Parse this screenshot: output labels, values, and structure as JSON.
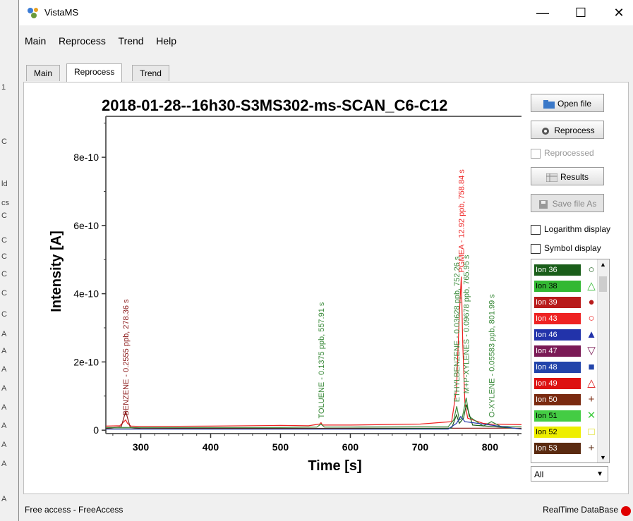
{
  "app": {
    "title": "VistaMS"
  },
  "window_controls": {
    "minimize": "—",
    "maximize": "☐",
    "close": "✕"
  },
  "menu": [
    "Main",
    "Reprocess",
    "Trend",
    "Help"
  ],
  "tabs": [
    "Main",
    "Reprocess",
    "Trend"
  ],
  "active_tab": "Reprocess",
  "left_strip_glyphs": [
    "1",
    "C",
    "ld",
    "cs",
    "C",
    "C",
    "C",
    "C",
    "C",
    "C",
    "A",
    "A",
    "A",
    "A",
    "A",
    "A",
    "A",
    "A",
    "A"
  ],
  "buttons": {
    "open_file": "Open file",
    "reprocess": "Reprocess",
    "results": "Results",
    "save_file_as": "Save file As"
  },
  "checkboxes": {
    "reprocessed": {
      "label": "Reprocessed",
      "checked": false,
      "enabled": false
    },
    "logarithm": {
      "label": "Logarithm display",
      "checked": false
    },
    "symbol": {
      "label": "Symbol display",
      "checked": false
    }
  },
  "ions": [
    {
      "label": "Ion 36",
      "color": "#1a5e1a",
      "text_color": "#ffffff",
      "symbol": "○",
      "symbol_color": "#1a5e1a"
    },
    {
      "label": "Ion 38",
      "color": "#33b833",
      "text_color": "#000000",
      "symbol": "△",
      "symbol_color": "#33b833"
    },
    {
      "label": "Ion 39",
      "color": "#b81a1a",
      "text_color": "#ffffff",
      "symbol": "●",
      "symbol_color": "#b81a1a"
    },
    {
      "label": "Ion 43",
      "color": "#ee2222",
      "text_color": "#ffffff",
      "symbol": "○",
      "symbol_color": "#ee2222"
    },
    {
      "label": "Ion 46",
      "color": "#2233aa",
      "text_color": "#ffffff",
      "symbol": "▲",
      "symbol_color": "#2233aa"
    },
    {
      "label": "Ion 47",
      "color": "#7a1a55",
      "text_color": "#ffffff",
      "symbol": "▽",
      "symbol_color": "#7a1a55"
    },
    {
      "label": "Ion 48",
      "color": "#2244aa",
      "text_color": "#ffffff",
      "symbol": "■",
      "symbol_color": "#2244aa"
    },
    {
      "label": "Ion 49",
      "color": "#dd1111",
      "text_color": "#ffffff",
      "symbol": "△",
      "symbol_color": "#dd1111"
    },
    {
      "label": "Ion 50",
      "color": "#7a2a10",
      "text_color": "#ffffff",
      "symbol": "+",
      "symbol_color": "#7a2a10"
    },
    {
      "label": "Ion 51",
      "color": "#44cc44",
      "text_color": "#000000",
      "symbol": "✕",
      "symbol_color": "#44cc44"
    },
    {
      "label": "Ion 52",
      "color": "#eeee00",
      "text_color": "#000000",
      "symbol": "□",
      "symbol_color": "#d8d800"
    },
    {
      "label": "Ion 53",
      "color": "#5a2a10",
      "text_color": "#ffffff",
      "symbol": "+",
      "symbol_color": "#5a2a10"
    }
  ],
  "ion_filter": {
    "selected": "All"
  },
  "status": {
    "left": "Free access - FreeAccess",
    "right": "RealTime DataBase",
    "indicator_color": "#e00000"
  },
  "chart_data": {
    "type": "line",
    "title": "2018-01-28--16h30-S3MS302-ms-SCAN_C6-C12",
    "xlabel": "Time [s]",
    "ylabel": "Intensity [A]",
    "xlim": [
      250,
      845
    ],
    "ylim": [
      -1e-11,
      9.2e-10
    ],
    "x_ticks": [
      300,
      400,
      500,
      600,
      700,
      800
    ],
    "y_ticks": [
      0,
      2e-10,
      4e-10,
      6e-10,
      8e-10
    ],
    "y_tick_labels": [
      "0",
      "2e-10",
      "4e-10",
      "6e-10",
      "8e-10"
    ],
    "series": [
      {
        "color": "#ee2222",
        "x": [
          250,
          270,
          276,
          278.4,
          281,
          286,
          300,
          400,
          500,
          540,
          556,
          558,
          560,
          600,
          700,
          745,
          752,
          756,
          758.8,
          761,
          764,
          768,
          790,
          800,
          845
        ],
        "y": [
          1.2e-11,
          1.3e-11,
          2.5e-11,
          3e-11,
          2e-11,
          1.2e-11,
          1.1e-11,
          1.2e-11,
          1.4e-11,
          1.3e-11,
          1.8e-11,
          2.2e-11,
          1.5e-11,
          1.5e-11,
          1.8e-11,
          2.5e-11,
          1.2e-10,
          3.4e-10,
          4.5e-10,
          2.5e-10,
          8e-11,
          3.5e-11,
          2e-11,
          1.8e-11,
          1.6e-11
        ]
      },
      {
        "color": "#8b1a1a",
        "x": [
          250,
          272,
          278.4,
          285,
          300,
          845
        ],
        "y": [
          5e-12,
          1e-11,
          5.5e-11,
          8e-12,
          5e-12,
          6e-12
        ]
      },
      {
        "color": "#3a8a3a",
        "x": [
          250,
          500,
          552,
          557.9,
          563,
          600,
          740,
          748,
          752.3,
          756,
          760,
          765.9,
          770,
          790,
          802,
          815,
          845
        ],
        "y": [
          8e-12,
          8e-12,
          9e-12,
          1.8e-11,
          9e-12,
          9e-12,
          1e-11,
          3e-11,
          7e-11,
          3e-11,
          3.5e-11,
          9.5e-11,
          4e-11,
          1.2e-11,
          2.5e-11,
          1.1e-11,
          1e-11
        ]
      },
      {
        "color": "#1a5e1a",
        "x": [
          250,
          600,
          745,
          752,
          756,
          762,
          766,
          775,
          845
        ],
        "y": [
          4e-12,
          4e-12,
          6e-12,
          4.5e-11,
          2e-11,
          3.5e-11,
          7.5e-11,
          1.5e-11,
          4e-12
        ]
      },
      {
        "color": "#2233aa",
        "x": [
          250,
          740,
          752,
          758,
          764,
          845
        ],
        "y": [
          3e-12,
          3e-12,
          2e-11,
          4e-11,
          2.5e-11,
          3e-12
        ]
      }
    ],
    "annotations": [
      {
        "text": "BENZENE - 0.2555 ppb, 278.36 s",
        "x": 278.36,
        "color": "#8b1a1a",
        "y": 3e-11
      },
      {
        "text": "TOLUENE - 0.1375 ppb, 557.91 s",
        "x": 557.91,
        "color": "#3a8a3a",
        "y": 2.2e-11
      },
      {
        "text": "ETHYLBENZENE - 0.03628 ppb, 752.26 s",
        "x": 752.26,
        "color": "#3a8a3a",
        "y": 7e-11
      },
      {
        "text": "PGMEA - 12.92 ppb, 758.84 s",
        "x": 758.84,
        "color": "#ee2222",
        "y": 4.5e-10
      },
      {
        "text": "M+P-XYLENES - 0.09678 ppb, 765.95 s",
        "x": 765.95,
        "color": "#3a8a3a",
        "y": 9.5e-11
      },
      {
        "text": "O-XYLENE - 0.05583 ppb, 801.99 s",
        "x": 801.99,
        "color": "#3a8a3a",
        "y": 2.5e-11
      }
    ]
  }
}
